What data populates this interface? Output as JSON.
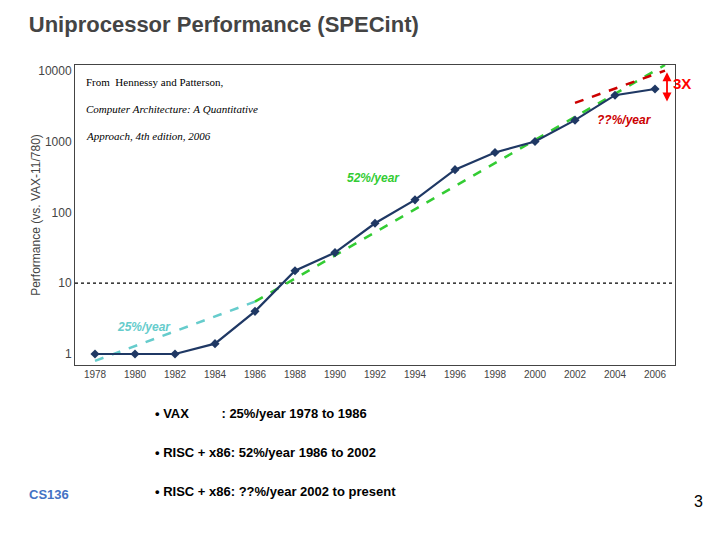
{
  "chart_data": {
    "type": "line",
    "title": "Uniprocessor Performance (SPECint)",
    "ylabel": "Performance (vs. VAX-11/780)",
    "log": "y",
    "grid": false,
    "series": [
      {
        "x": [
          1978,
          1986
        ],
        "values": [
          0.8,
          5.5
        ],
        "color": "#66CCCC",
        "line_style": "dashed"
      },
      {
        "x": [
          1986,
          2006.5
        ],
        "values": [
          5.5,
          12000
        ],
        "color": "#33CC33",
        "line_style": "dashed"
      },
      {
        "x": [
          2002,
          2006.5
        ],
        "values": [
          3500,
          10000
        ],
        "color": "#CC0000",
        "line_style": "dashed"
      },
      {
        "x": [
          1978,
          1980,
          1982,
          1984,
          1986,
          1988,
          1990,
          1992,
          1994,
          1996,
          1998,
          2000,
          2002,
          2004,
          2006
        ],
        "values": [
          1,
          1,
          1,
          1.4,
          4,
          15,
          27,
          70,
          150,
          400,
          700,
          1000,
          2000,
          4500,
          5500
        ],
        "color": "#1F3864",
        "marker": "diamond",
        "line_style": "solid"
      }
    ],
    "reference_line": {
      "y": 10,
      "color": "black",
      "line_style": "dotted"
    },
    "xlim": [
      1977,
      2007
    ],
    "ylim": [
      0.7,
      12000
    ],
    "xticks": [
      1978,
      1980,
      1982,
      1984,
      1986,
      1988,
      1990,
      1992,
      1994,
      1996,
      1998,
      2000,
      2002,
      2004,
      2006
    ],
    "yticks": [
      1,
      10,
      100,
      1000,
      10000
    ],
    "annotations": [
      {
        "text": "25%/year",
        "x": 1979.0,
        "y": 1.8,
        "color": "#66CCCC"
      },
      {
        "text": "52%/year",
        "x": 1990.5,
        "y": 230,
        "color": "#33CC33"
      },
      {
        "text": "??%/year",
        "x": 2003.0,
        "y": 1500,
        "color": "#CC0000"
      },
      {
        "text": "3X",
        "x": 2006.8,
        "y": 6500,
        "color": "red",
        "arrow": {
          "x": 2006.6,
          "from": 3500,
          "to": 9500
        }
      }
    ],
    "notes": [
      "From  Hennessy and Patterson,",
      "Computer Architecture: A Quantitative",
      "Approach, 4th edition, 2006"
    ],
    "bullets": [
      "• VAX         : 25%/year 1978 to 1986",
      "• RISC + x86: 52%/year 1986 to 2002",
      "• RISC + x86: ??%/year 2002 to present"
    ],
    "footer": {
      "text": "CS136",
      "color": "#4472C4"
    },
    "page_number": "3"
  }
}
